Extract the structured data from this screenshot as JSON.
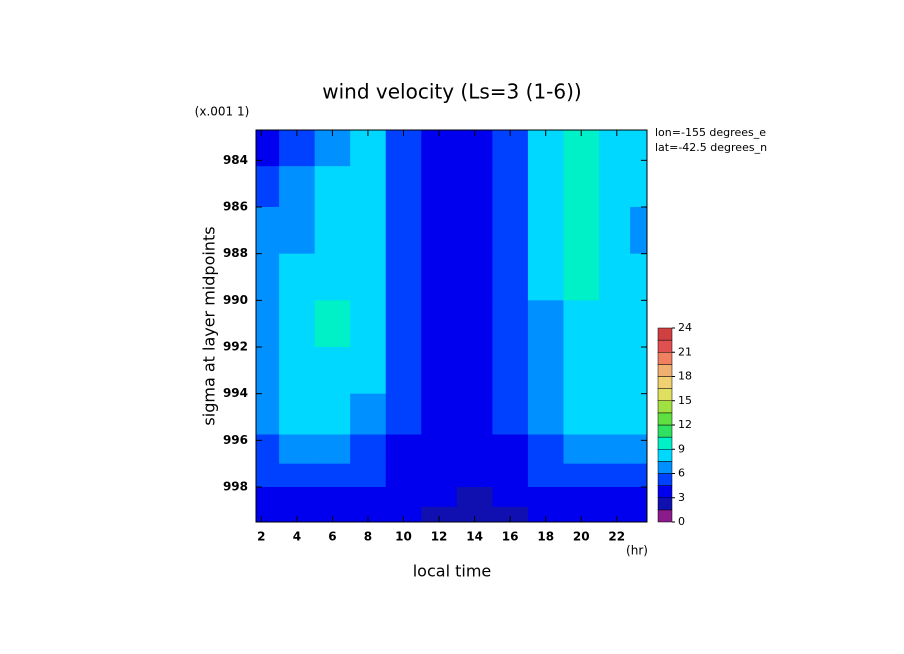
{
  "chart_data": {
    "type": "contour",
    "title": "wind velocity (Ls=3 (1-6))",
    "x_label": "local time",
    "y_label": "sigma at layer midpoints",
    "x_unit": "(hr)",
    "y_unit": "(x.001 1)",
    "annotations": [
      "lon=-155 degrees_e",
      "lat=-42.5 degrees_n"
    ],
    "xlim": [
      1.7,
      23.7
    ],
    "ylim": [
      982.7,
      999.5
    ],
    "y_reversed": true,
    "xticks": [
      2,
      4,
      6,
      8,
      10,
      12,
      14,
      16,
      18,
      20,
      22
    ],
    "yticks": [
      984,
      986,
      988,
      990,
      992,
      994,
      996,
      998
    ],
    "x": [
      2,
      4,
      6,
      8,
      10,
      12,
      14,
      16,
      18,
      20,
      22,
      23.5
    ],
    "y": [
      983.5,
      985,
      987,
      989,
      991,
      993,
      995,
      996.5,
      997.5,
      998.5,
      999.2
    ],
    "z": [
      [
        4,
        5.5,
        7,
        7.5,
        4.5,
        3,
        3,
        4.5,
        7.5,
        9,
        8,
        7.5
      ],
      [
        5,
        6.5,
        7.5,
        8,
        5,
        3,
        3,
        5,
        7.5,
        9.5,
        8,
        7.5
      ],
      [
        6,
        7,
        8,
        8.5,
        5,
        3,
        3,
        5,
        7.5,
        9.5,
        8,
        7
      ],
      [
        6.5,
        7.5,
        8.5,
        8.5,
        5,
        3,
        3,
        5,
        7.5,
        9,
        8,
        7.5
      ],
      [
        7,
        8,
        9,
        8.5,
        5,
        3,
        3,
        5,
        7,
        8.5,
        8,
        7.5
      ],
      [
        7,
        8,
        8.5,
        7.5,
        4.5,
        3,
        3,
        4.5,
        6.5,
        8.5,
        8,
        8
      ],
      [
        6.5,
        8,
        8,
        6.5,
        4.5,
        3,
        3,
        4.5,
        6,
        8,
        8,
        7.5
      ],
      [
        5.5,
        6,
        6,
        5,
        4,
        3,
        3,
        4,
        5,
        6.5,
        6.5,
        6.5
      ],
      [
        4.5,
        5,
        5,
        4.5,
        4,
        3,
        3,
        3.5,
        4.5,
        5,
        5,
        5
      ],
      [
        4,
        4,
        4,
        3.5,
        3.5,
        3,
        2.5,
        3,
        3.5,
        4,
        4,
        4
      ],
      [
        3.5,
        3.5,
        3.5,
        3.5,
        3,
        2,
        2,
        2.5,
        3,
        3.5,
        3.5,
        3.5
      ]
    ],
    "colorbar": {
      "levels": [
        0,
        1.5,
        3,
        4.5,
        6,
        7.5,
        9,
        10.5,
        12,
        13.5,
        15,
        16.5,
        18,
        19.5,
        21,
        22.5,
        24
      ],
      "colors": [
        "#8b1a8b",
        "#1010b0",
        "#0000ee",
        "#0040ff",
        "#0090ff",
        "#00d8ff",
        "#00f0c8",
        "#30e060",
        "#60e040",
        "#a0e040",
        "#e0e060",
        "#f0d070",
        "#f0b070",
        "#f08060",
        "#e05050",
        "#d04040"
      ],
      "ticks": [
        0,
        3,
        6,
        9,
        12,
        15,
        18,
        21,
        24
      ]
    }
  }
}
